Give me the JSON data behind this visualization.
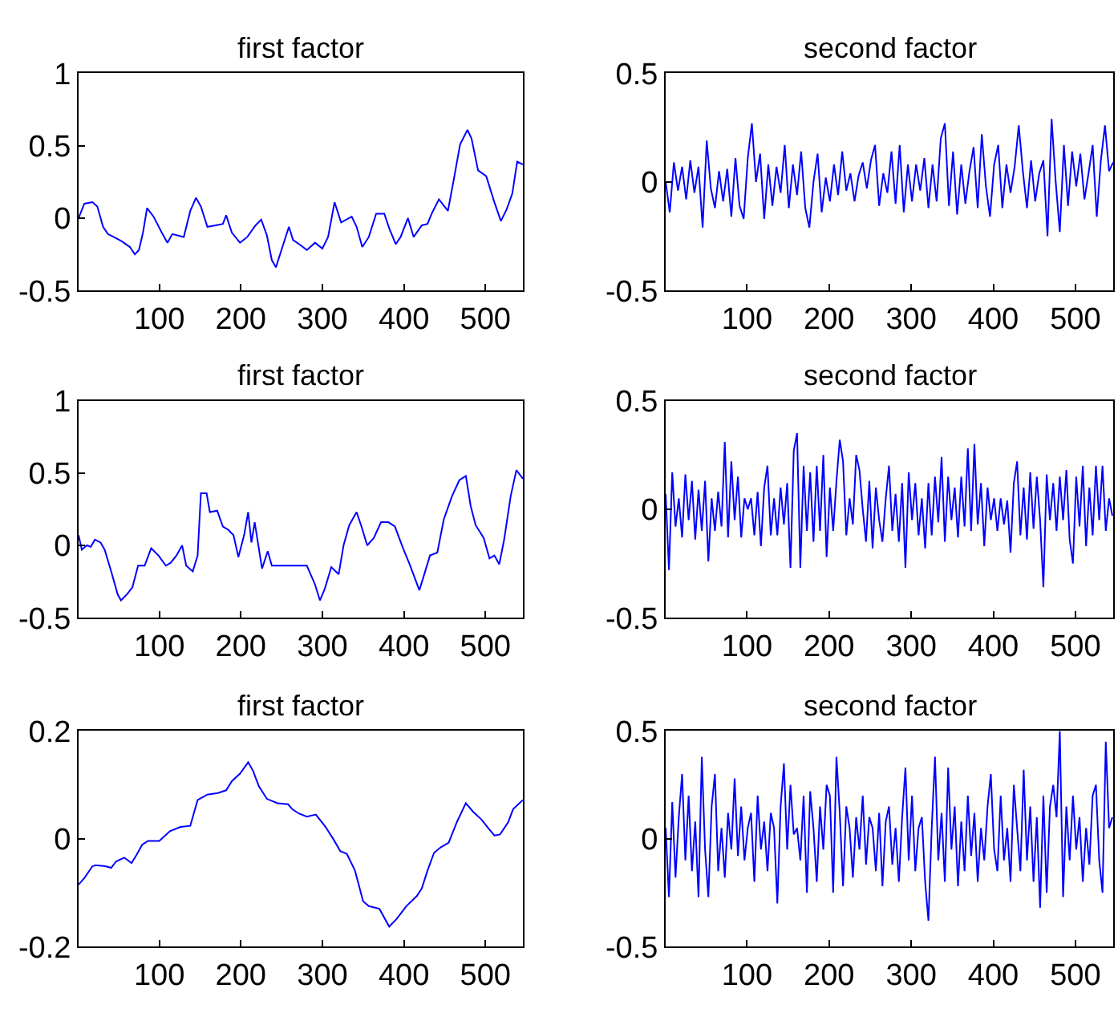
{
  "chart_data": [
    {
      "type": "line",
      "title": "first factor",
      "color": "#0000ff",
      "xlim": [
        1,
        546
      ],
      "ylim": [
        -0.5,
        1
      ],
      "xticks": [
        100,
        200,
        300,
        400,
        500
      ],
      "yticks": [
        -0.5,
        0,
        0.5,
        1
      ],
      "x": [
        1,
        8,
        18,
        24,
        31,
        37,
        44,
        54,
        64,
        70,
        75,
        80,
        85,
        93,
        103,
        110,
        116,
        130,
        138,
        145,
        151,
        159,
        169,
        178,
        182,
        189,
        199,
        208,
        218,
        225,
        232,
        238,
        243,
        251,
        259,
        264,
        274,
        281,
        291,
        300,
        307,
        315,
        323,
        336,
        342,
        349,
        357,
        366,
        376,
        382,
        390,
        396,
        405,
        412,
        422,
        429,
        434,
        443,
        454,
        461,
        469,
        478,
        483,
        491,
        501,
        511,
        519,
        526,
        533,
        539,
        546
      ],
      "values": [
        0.0,
        0.1,
        0.11,
        0.08,
        -0.06,
        -0.11,
        -0.13,
        -0.16,
        -0.2,
        -0.25,
        -0.22,
        -0.1,
        0.07,
        0.01,
        -0.1,
        -0.17,
        -0.11,
        -0.13,
        0.05,
        0.14,
        0.08,
        -0.06,
        -0.05,
        -0.04,
        0.02,
        -0.1,
        -0.17,
        -0.13,
        -0.05,
        -0.01,
        -0.12,
        -0.29,
        -0.34,
        -0.2,
        -0.06,
        -0.15,
        -0.19,
        -0.22,
        -0.17,
        -0.21,
        -0.13,
        0.11,
        -0.03,
        0.01,
        -0.06,
        -0.2,
        -0.13,
        0.03,
        0.03,
        -0.07,
        -0.18,
        -0.13,
        0.0,
        -0.13,
        -0.05,
        -0.04,
        0.03,
        0.13,
        0.05,
        0.26,
        0.51,
        0.61,
        0.55,
        0.33,
        0.29,
        0.11,
        -0.02,
        0.06,
        0.17,
        0.39,
        0.37
      ]
    },
    {
      "type": "line",
      "title": "second factor",
      "color": "#0000ff",
      "xlim": [
        1,
        546
      ],
      "ylim": [
        -0.5,
        0.5
      ],
      "xticks": [
        100,
        200,
        300,
        400,
        500
      ],
      "yticks": [
        -0.5,
        0,
        0.5
      ],
      "x": [
        1,
        6,
        11,
        16,
        21,
        26,
        31,
        36,
        41,
        46,
        51,
        56,
        61,
        66,
        71,
        76,
        81,
        86,
        91,
        96,
        101,
        106,
        111,
        116,
        121,
        126,
        131,
        136,
        141,
        146,
        151,
        156,
        161,
        166,
        171,
        176,
        181,
        186,
        191,
        196,
        201,
        206,
        211,
        216,
        221,
        226,
        231,
        236,
        241,
        246,
        251,
        256,
        261,
        266,
        271,
        276,
        281,
        286,
        291,
        296,
        301,
        306,
        311,
        316,
        321,
        326,
        331,
        336,
        341,
        346,
        351,
        356,
        361,
        366,
        371,
        376,
        381,
        386,
        391,
        396,
        401,
        406,
        411,
        416,
        421,
        426,
        431,
        436,
        441,
        446,
        451,
        456,
        461,
        466,
        471,
        476,
        481,
        486,
        491,
        496,
        501,
        506,
        511,
        516,
        521,
        526,
        531,
        536,
        541,
        546
      ],
      "values": [
        0,
        -0.14,
        0.09,
        -0.04,
        0.07,
        -0.08,
        0.1,
        -0.05,
        0.07,
        -0.21,
        0.19,
        -0.03,
        -0.12,
        0.05,
        -0.09,
        0.06,
        -0.16,
        0.11,
        -0.11,
        -0.17,
        0.11,
        0.27,
        0,
        0.13,
        -0.17,
        0.08,
        -0.11,
        0.07,
        -0.05,
        0.17,
        -0.12,
        0.08,
        -0.06,
        0.14,
        -0.12,
        -0.21,
        0,
        0.13,
        -0.14,
        0.02,
        -0.09,
        0.08,
        -0.06,
        0.14,
        -0.04,
        0.04,
        -0.09,
        0.03,
        0.09,
        -0.03,
        0.1,
        0.17,
        -0.11,
        0.04,
        -0.05,
        0.14,
        -0.1,
        0.17,
        -0.14,
        0.08,
        -0.09,
        0.08,
        -0.04,
        0.11,
        -0.12,
        0.08,
        -0.09,
        0.2,
        0.27,
        -0.11,
        0.14,
        -0.15,
        0.08,
        -0.1,
        0.05,
        0.16,
        -0.12,
        0.22,
        -0.02,
        -0.16,
        0.08,
        0.17,
        -0.12,
        0.08,
        -0.05,
        0.07,
        0.26,
        0.05,
        -0.12,
        0.1,
        -0.09,
        0.04,
        0.1,
        -0.25,
        0.29,
        0,
        -0.23,
        0.17,
        -0.11,
        0.14,
        -0.02,
        0.13,
        -0.08,
        0.04,
        0.17,
        -0.16,
        0.1,
        0.26,
        0.05,
        0.09
      ]
    },
    {
      "type": "line",
      "title": "first factor",
      "color": "#0000ff",
      "xlim": [
        1,
        546
      ],
      "ylim": [
        -0.5,
        1
      ],
      "xticks": [
        100,
        200,
        300,
        400,
        500
      ],
      "yticks": [
        -0.5,
        0,
        0.5,
        1
      ],
      "x": [
        1,
        5,
        11,
        16,
        21,
        28,
        33,
        41,
        49,
        53,
        60,
        67,
        74,
        82,
        90,
        99,
        108,
        114,
        121,
        128,
        133,
        141,
        147,
        151,
        158,
        162,
        171,
        178,
        184,
        191,
        197,
        204,
        209,
        213,
        217,
        226,
        233,
        238,
        251,
        264,
        281,
        291,
        297,
        303,
        311,
        320,
        326,
        333,
        342,
        348,
        355,
        363,
        372,
        381,
        389,
        399,
        407,
        419,
        425,
        432,
        441,
        449,
        459,
        468,
        476,
        482,
        488,
        498,
        505,
        511,
        517,
        523,
        531,
        538,
        546
      ],
      "values": [
        0.07,
        -0.03,
        0,
        -0.01,
        0.04,
        0.02,
        -0.03,
        -0.18,
        -0.34,
        -0.38,
        -0.34,
        -0.29,
        -0.14,
        -0.14,
        -0.02,
        -0.07,
        -0.14,
        -0.12,
        -0.07,
        0,
        -0.14,
        -0.18,
        -0.07,
        0.36,
        0.36,
        0.23,
        0.24,
        0.13,
        0.11,
        0.07,
        -0.08,
        0.07,
        0.23,
        0.02,
        0.16,
        -0.16,
        -0.04,
        -0.14,
        -0.14,
        -0.14,
        -0.14,
        -0.27,
        -0.38,
        -0.3,
        -0.15,
        -0.2,
        0,
        0.14,
        0.23,
        0.13,
        0,
        0.05,
        0.16,
        0.16,
        0.13,
        -0.02,
        -0.13,
        -0.31,
        -0.2,
        -0.07,
        -0.05,
        0.18,
        0.34,
        0.45,
        0.48,
        0.27,
        0.14,
        0.05,
        -0.09,
        -0.07,
        -0.13,
        0.04,
        0.34,
        0.52,
        0.46
      ]
    },
    {
      "type": "line",
      "title": "second factor",
      "color": "#0000ff",
      "xlim": [
        1,
        546
      ],
      "ylim": [
        -0.5,
        0.5
      ],
      "xticks": [
        100,
        200,
        300,
        400,
        500
      ],
      "yticks": [
        -0.5,
        0,
        0.5
      ],
      "x": [
        1,
        5,
        9,
        13,
        17,
        21,
        25,
        29,
        33,
        37,
        41,
        45,
        49,
        53,
        57,
        61,
        65,
        69,
        73,
        77,
        81,
        85,
        89,
        93,
        97,
        101,
        105,
        109,
        113,
        117,
        121,
        125,
        129,
        133,
        137,
        141,
        145,
        149,
        153,
        157,
        161,
        165,
        169,
        173,
        177,
        181,
        185,
        189,
        193,
        197,
        201,
        205,
        209,
        213,
        217,
        221,
        225,
        229,
        233,
        237,
        241,
        245,
        249,
        253,
        257,
        261,
        265,
        269,
        273,
        277,
        281,
        285,
        289,
        293,
        297,
        301,
        305,
        309,
        313,
        317,
        321,
        325,
        329,
        333,
        337,
        341,
        345,
        349,
        353,
        357,
        361,
        365,
        369,
        373,
        377,
        381,
        385,
        389,
        393,
        397,
        401,
        405,
        409,
        413,
        417,
        421,
        425,
        429,
        433,
        437,
        441,
        445,
        449,
        453,
        457,
        461,
        465,
        469,
        473,
        477,
        481,
        485,
        489,
        493,
        497,
        501,
        505,
        509,
        513,
        517,
        521,
        525,
        529,
        533,
        537,
        541,
        545
      ],
      "values": [
        0.07,
        -0.28,
        0.17,
        -0.08,
        0.05,
        -0.13,
        0.16,
        -0.05,
        0.13,
        -0.14,
        0.09,
        -0.1,
        0.13,
        -0.24,
        0.05,
        -0.1,
        0.08,
        -0.08,
        0.31,
        -0.13,
        0.22,
        -0.05,
        0.15,
        -0.13,
        0.05,
        0,
        0.05,
        -0.12,
        0.08,
        -0.17,
        0.1,
        0.2,
        -0.12,
        0.05,
        -0.12,
        0.1,
        -0.07,
        0.12,
        -0.27,
        0.27,
        0.35,
        -0.27,
        0.2,
        -0.1,
        0.17,
        -0.15,
        0.2,
        -0.1,
        0.25,
        -0.22,
        0.1,
        -0.1,
        0.13,
        0.32,
        0.22,
        -0.12,
        0.05,
        -0.07,
        0.25,
        0.18,
        0,
        -0.15,
        0.13,
        -0.18,
        0.1,
        -0.05,
        -0.15,
        0.05,
        0.2,
        -0.1,
        0.07,
        -0.15,
        0.12,
        -0.27,
        0.17,
        -0.05,
        0.12,
        -0.12,
        0.05,
        -0.18,
        0.12,
        -0.12,
        0.15,
        -0.06,
        0.24,
        -0.15,
        0.15,
        -0.05,
        0.1,
        -0.13,
        0.15,
        -0.08,
        0.28,
        -0.1,
        0.3,
        -0.07,
        0.12,
        -0.17,
        0.1,
        -0.05,
        0.05,
        -0.1,
        0.05,
        -0.07,
        0.04,
        -0.2,
        0.12,
        0.22,
        -0.12,
        0.1,
        -0.14,
        0.17,
        -0.09,
        0.15,
        -0.05,
        -0.36,
        0.16,
        -0.05,
        0.12,
        -0.1,
        0.15,
        -0.05,
        0.18,
        -0.14,
        -0.25,
        0.15,
        -0.08,
        0.2,
        -0.17,
        0.1,
        -0.12,
        0.2,
        -0.05,
        0.2,
        -0.1,
        0.05,
        -0.03
      ]
    },
    {
      "type": "line",
      "title": "first factor",
      "color": "#0000ff",
      "xlim": [
        1,
        546
      ],
      "ylim": [
        -0.2,
        0.2
      ],
      "xticks": [
        100,
        200,
        300,
        400,
        500
      ],
      "yticks": [
        -0.2,
        0,
        0.2
      ],
      "x": [
        1,
        8,
        18,
        22,
        34,
        41,
        47,
        57,
        66,
        72,
        79,
        86,
        100,
        113,
        126,
        138,
        147,
        159,
        172,
        182,
        189,
        199,
        209,
        215,
        222,
        232,
        245,
        258,
        263,
        271,
        281,
        292,
        304,
        314,
        322,
        330,
        340,
        350,
        357,
        370,
        382,
        391,
        403,
        416,
        422,
        429,
        437,
        445,
        455,
        465,
        476,
        485,
        495,
        505,
        511,
        518,
        528,
        534,
        546
      ],
      "values": [
        -0.085,
        -0.073,
        -0.051,
        -0.049,
        -0.051,
        -0.054,
        -0.042,
        -0.035,
        -0.045,
        -0.03,
        -0.011,
        -0.004,
        -0.004,
        0.014,
        0.022,
        0.024,
        0.072,
        0.082,
        0.085,
        0.09,
        0.107,
        0.121,
        0.142,
        0.126,
        0.098,
        0.074,
        0.066,
        0.064,
        0.055,
        0.047,
        0.041,
        0.045,
        0.022,
        -0.002,
        -0.023,
        -0.028,
        -0.059,
        -0.116,
        -0.125,
        -0.13,
        -0.163,
        -0.149,
        -0.125,
        -0.106,
        -0.092,
        -0.059,
        -0.026,
        -0.016,
        -0.007,
        0.031,
        0.066,
        0.05,
        0.036,
        0.017,
        0.006,
        0.008,
        0.031,
        0.055,
        0.072
      ]
    },
    {
      "type": "line",
      "title": "second factor",
      "color": "#0000ff",
      "xlim": [
        1,
        546
      ],
      "ylim": [
        -0.5,
        0.5
      ],
      "xticks": [
        100,
        200,
        300,
        400,
        500
      ],
      "yticks": [
        -0.5,
        0,
        0.5
      ],
      "x": [
        1,
        5,
        9,
        13,
        17,
        21,
        25,
        29,
        33,
        37,
        41,
        45,
        49,
        53,
        57,
        61,
        65,
        69,
        73,
        77,
        81,
        85,
        89,
        93,
        97,
        101,
        105,
        109,
        113,
        117,
        121,
        125,
        129,
        133,
        137,
        141,
        145,
        149,
        153,
        157,
        161,
        165,
        169,
        173,
        177,
        181,
        185,
        189,
        193,
        197,
        201,
        205,
        209,
        213,
        217,
        221,
        225,
        229,
        233,
        237,
        241,
        245,
        249,
        253,
        257,
        261,
        265,
        269,
        273,
        277,
        281,
        285,
        289,
        293,
        297,
        301,
        305,
        309,
        313,
        317,
        321,
        325,
        329,
        333,
        337,
        341,
        345,
        349,
        353,
        357,
        361,
        365,
        369,
        373,
        377,
        381,
        385,
        389,
        393,
        397,
        401,
        405,
        409,
        413,
        417,
        421,
        425,
        429,
        433,
        437,
        441,
        445,
        449,
        453,
        457,
        461,
        465,
        469,
        473,
        477,
        481,
        485,
        489,
        493,
        497,
        501,
        505,
        509,
        513,
        517,
        521,
        525,
        529,
        533,
        537,
        541,
        545
      ],
      "values": [
        0.05,
        -0.27,
        0.17,
        -0.18,
        0.1,
        0.3,
        -0.1,
        0.2,
        -0.15,
        0.08,
        -0.27,
        0.38,
        -0.05,
        -0.27,
        0.15,
        0.3,
        -0.15,
        0.05,
        -0.18,
        0.12,
        -0.05,
        0.28,
        -0.08,
        0.15,
        -0.1,
        0.05,
        0.12,
        -0.2,
        0.2,
        -0.05,
        0.08,
        -0.15,
        0.12,
        0.05,
        -0.3,
        0.15,
        0.35,
        -0.05,
        0.25,
        0.02,
        0.05,
        -0.1,
        0.2,
        -0.25,
        0.22,
        0.05,
        -0.2,
        0.15,
        -0.05,
        0.25,
        0.2,
        -0.25,
        0.38,
        0.12,
        -0.22,
        0.15,
        0.05,
        -0.18,
        0.1,
        -0.05,
        0.2,
        -0.12,
        0.1,
        0.05,
        -0.15,
        0.12,
        -0.22,
        0.08,
        0.15,
        -0.12,
        0.05,
        -0.2,
        0.1,
        0.33,
        -0.1,
        0.2,
        -0.15,
        0.05,
        0.1,
        -0.2,
        -0.38,
        0.05,
        0.38,
        -0.1,
        0.12,
        -0.2,
        0.33,
        -0.05,
        0.15,
        -0.22,
        0.08,
        -0.15,
        0.2,
        -0.08,
        0.12,
        -0.2,
        0.05,
        -0.1,
        0.15,
        0.3,
        -0.05,
        -0.15,
        0.2,
        -0.1,
        0.05,
        -0.2,
        0.25,
        0.05,
        -0.15,
        0.32,
        -0.1,
        0.15,
        -0.2,
        0.1,
        -0.32,
        0.2,
        -0.25,
        0.15,
        0.25,
        0.1,
        0.5,
        -0.27,
        0.15,
        -0.1,
        0.2,
        -0.05,
        0.1,
        -0.2,
        0.05,
        -0.12,
        0.2,
        0.25,
        -0.1,
        -0.25,
        0.45,
        0.05,
        0.1
      ]
    }
  ]
}
